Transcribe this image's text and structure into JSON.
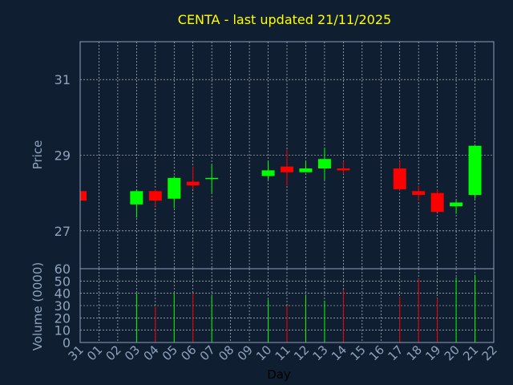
{
  "chart_data": {
    "type": "candlestick",
    "title": "CENTA - last updated 21/11/2025",
    "xlabel": "Day",
    "x_ticks": [
      "31",
      "01",
      "02",
      "03",
      "04",
      "05",
      "06",
      "07",
      "08",
      "09",
      "10",
      "11",
      "12",
      "13",
      "14",
      "15",
      "16",
      "17",
      "18",
      "19",
      "20",
      "21",
      "22"
    ],
    "price_panel": {
      "ylabel": "Price",
      "ylim": [
        26,
        32
      ],
      "y_ticks": [
        27,
        29,
        31
      ],
      "grid": true,
      "candles": [
        {
          "day": "31",
          "open": 28.05,
          "high": 28.05,
          "low": 27.8,
          "close": 27.8
        },
        {
          "day": "03",
          "open": 27.7,
          "high": 28.1,
          "low": 27.35,
          "close": 28.05
        },
        {
          "day": "04",
          "open": 28.05,
          "high": 28.1,
          "low": 27.65,
          "close": 27.8
        },
        {
          "day": "05",
          "open": 27.85,
          "high": 28.45,
          "low": 27.6,
          "close": 28.4
        },
        {
          "day": "06",
          "open": 28.3,
          "high": 28.7,
          "low": 28.1,
          "close": 28.2
        },
        {
          "day": "07",
          "open": 28.4,
          "high": 28.75,
          "low": 28.0,
          "close": 28.4
        },
        {
          "day": "10",
          "open": 28.45,
          "high": 28.85,
          "low": 28.35,
          "close": 28.6
        },
        {
          "day": "11",
          "open": 28.7,
          "high": 29.15,
          "low": 28.2,
          "close": 28.55
        },
        {
          "day": "12",
          "open": 28.55,
          "high": 28.85,
          "low": 28.55,
          "close": 28.65
        },
        {
          "day": "13",
          "open": 28.65,
          "high": 29.2,
          "low": 28.35,
          "close": 28.9
        },
        {
          "day": "14",
          "open": 28.65,
          "high": 28.85,
          "low": 28.5,
          "close": 28.6
        },
        {
          "day": "17",
          "open": 28.65,
          "high": 28.85,
          "low": 28.05,
          "close": 28.1
        },
        {
          "day": "18",
          "open": 28.05,
          "high": 28.2,
          "low": 27.8,
          "close": 27.95
        },
        {
          "day": "19",
          "open": 28.0,
          "high": 28.1,
          "low": 27.5,
          "close": 27.5
        },
        {
          "day": "20",
          "open": 27.65,
          "high": 27.8,
          "low": 27.45,
          "close": 27.75
        },
        {
          "day": "21",
          "open": 27.95,
          "high": 29.25,
          "low": 27.85,
          "close": 29.25
        }
      ]
    },
    "volume_panel": {
      "ylabel": "Volume (0000)",
      "ylim": [
        0,
        60
      ],
      "y_ticks": [
        0,
        10,
        20,
        30,
        40,
        50,
        60
      ],
      "grid": true,
      "bars": [
        {
          "day": "03",
          "value": 40
        },
        {
          "day": "04",
          "value": 29
        },
        {
          "day": "05",
          "value": 40
        },
        {
          "day": "06",
          "value": 40
        },
        {
          "day": "07",
          "value": 38
        },
        {
          "day": "10",
          "value": 35
        },
        {
          "day": "11",
          "value": 30
        },
        {
          "day": "12",
          "value": 38
        },
        {
          "day": "13",
          "value": 34
        },
        {
          "day": "14",
          "value": 43
        },
        {
          "day": "17",
          "value": 37
        },
        {
          "day": "18",
          "value": 52
        },
        {
          "day": "19",
          "value": 36
        },
        {
          "day": "20",
          "value": 53
        },
        {
          "day": "21",
          "value": 55
        }
      ]
    },
    "colors": {
      "background": "#0f1e30",
      "up": "#00ff00",
      "down": "#ff0000",
      "grid": "#ffffff",
      "frame": "#8fa3bd",
      "title": "#ffff00",
      "tick_label": "#8fa3bd",
      "axis_label": "#8fa3bd",
      "xlabel": "#000000"
    }
  }
}
